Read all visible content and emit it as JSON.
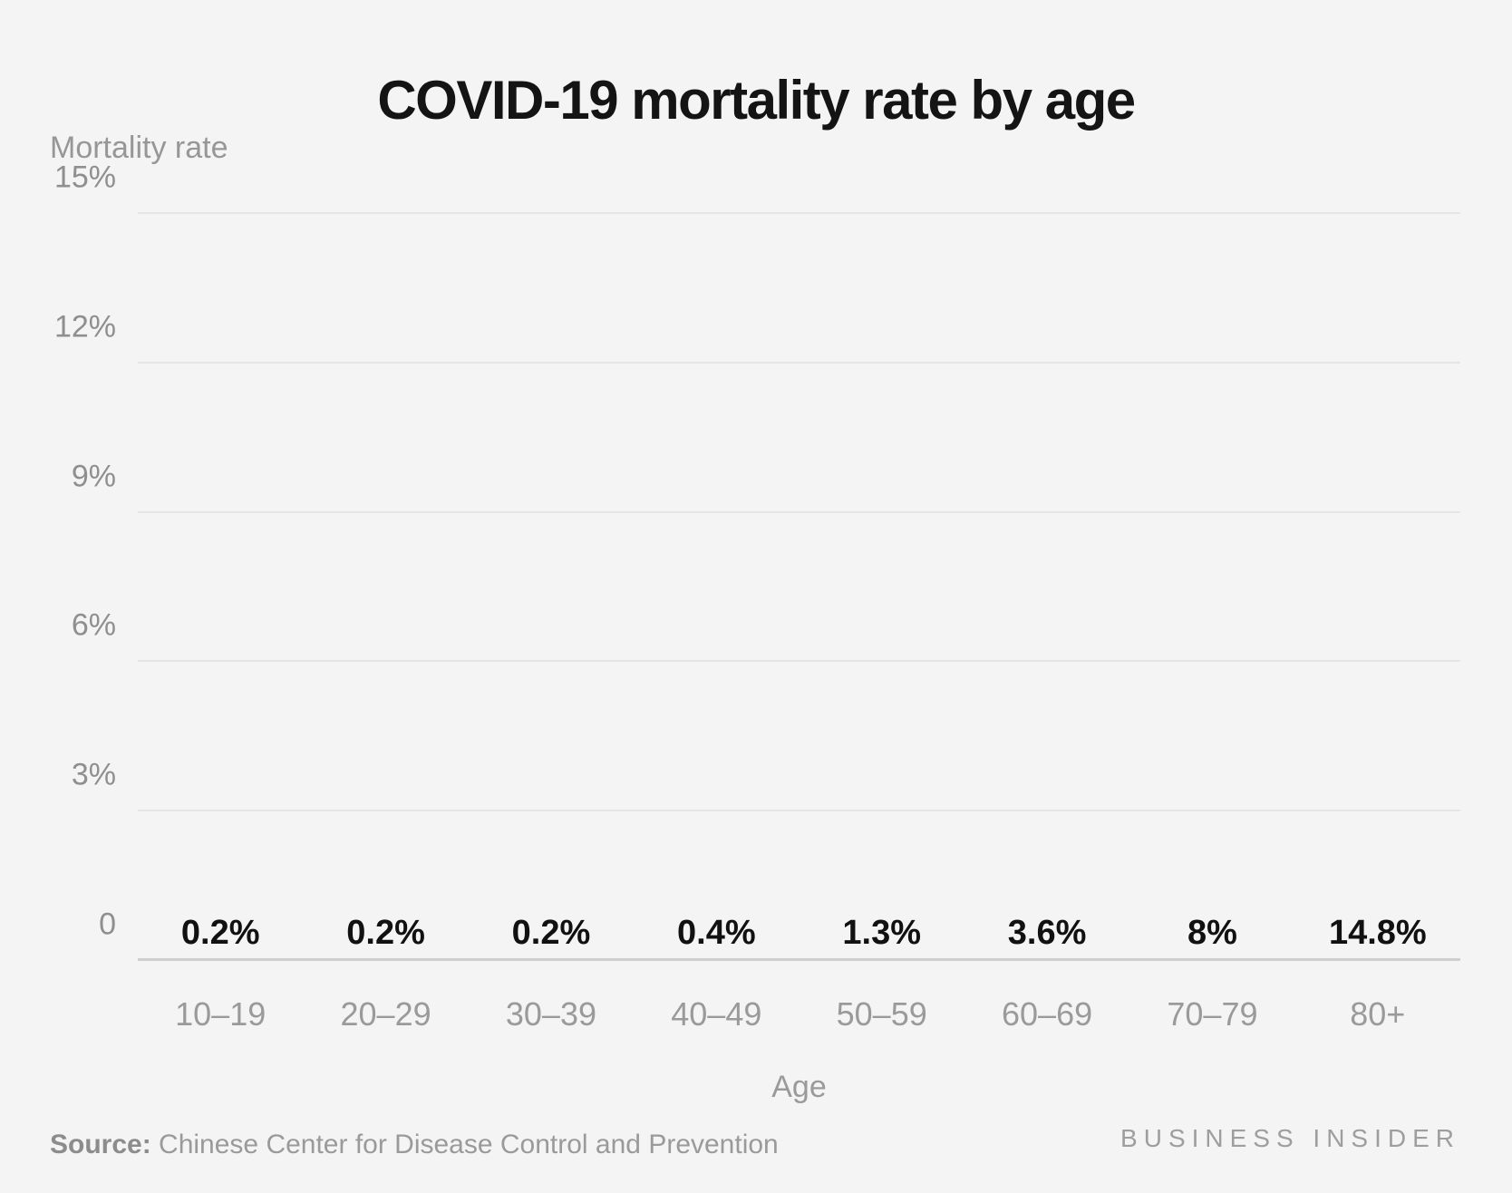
{
  "title": "COVID-19 mortality rate by age",
  "chart_data": {
    "type": "bar",
    "title": "COVID-19 mortality rate by age",
    "categories": [
      "10–19",
      "20–29",
      "30–39",
      "40–49",
      "50–59",
      "60–69",
      "70–79",
      "80+"
    ],
    "values": [
      0.2,
      0.2,
      0.2,
      0.4,
      1.3,
      3.6,
      8,
      14.8
    ],
    "value_labels": [
      "0.2%",
      "0.2%",
      "0.2%",
      "0.4%",
      "1.3%",
      "3.6%",
      "8%",
      "14.8%"
    ],
    "xlabel": "Age",
    "ylabel": "Mortality rate",
    "ylim": [
      0,
      15
    ],
    "yticks": [
      0,
      3,
      6,
      9,
      12,
      15
    ],
    "ytick_labels": [
      "0",
      "3%",
      "6%",
      "9%",
      "12%",
      "15%"
    ],
    "grid": true,
    "legend": "none",
    "bar_color": "#8e0202"
  },
  "footer": {
    "source_label": "Source:",
    "source_text": " Chinese Center for Disease Control and Prevention",
    "brand": "BUSINESS INSIDER"
  },
  "colors": {
    "background": "#f4f4f4",
    "bar": "#8e0202",
    "gridline": "#e5e5e5",
    "baseline": "#cfcfcf",
    "axis_text": "#9a9a9a",
    "title_text": "#141414"
  }
}
